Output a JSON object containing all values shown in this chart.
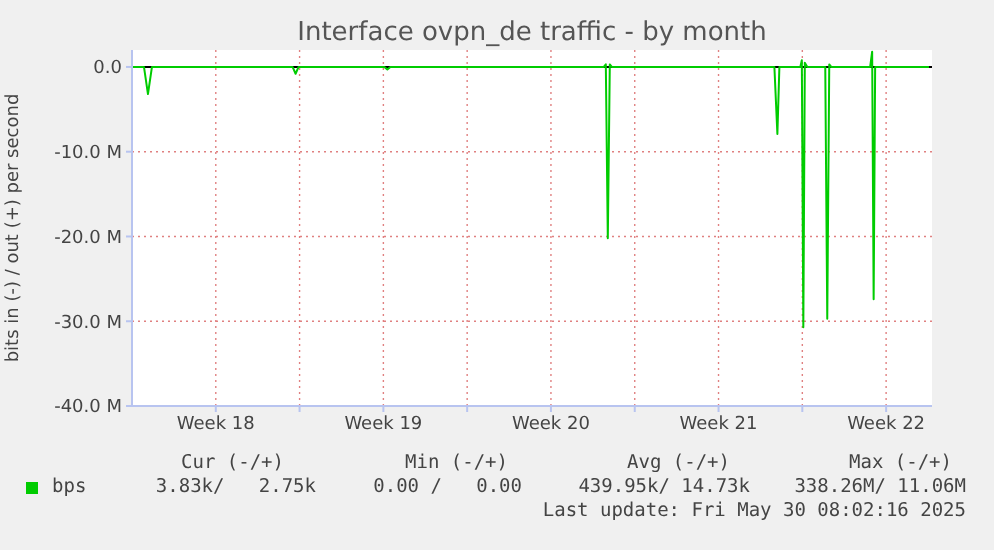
{
  "chart_data": {
    "type": "line",
    "title": "Interface ovpn_de traffic - by month",
    "ylabel": "bits in (-) / out (+) per second",
    "xlim": [
      "2025-04-28",
      "2025-05-31T10:00"
    ],
    "xticks": [
      {
        "value": "2025-05-01T12:00",
        "label": "Week 18"
      },
      {
        "value": "2025-05-05",
        "label": null
      },
      {
        "value": "2025-05-08T12:00",
        "label": "Week 19"
      },
      {
        "value": "2025-05-12",
        "label": null
      },
      {
        "value": "2025-05-15T12:00",
        "label": "Week 20"
      },
      {
        "value": "2025-05-19",
        "label": null
      },
      {
        "value": "2025-05-22T12:00",
        "label": "Week 21"
      },
      {
        "value": "2025-05-26",
        "label": null
      },
      {
        "value": "2025-05-29T12:00",
        "label": "Week 22"
      }
    ],
    "ylim": [
      -40,
      2
    ],
    "yticks": [
      {
        "value": -40,
        "label": "-40.0 M"
      },
      {
        "value": -30,
        "label": "-30.0 M"
      },
      {
        "value": -20,
        "label": "-20.0 M"
      },
      {
        "value": -10,
        "label": "-10.0 M"
      },
      {
        "value": 0,
        "label": "0.0"
      }
    ],
    "grid": true,
    "legend": "bottom",
    "marker": "none",
    "line_style": "solid",
    "ref_lines": [
      {
        "axis": "y",
        "value": 0,
        "color": "#000000"
      }
    ],
    "series": [
      {
        "name": "bps",
        "color": "#00cc00",
        "x": [
          "2025-04-28T00:00",
          "2025-04-28T12:00",
          "2025-04-28T16:00",
          "2025-04-28T20:00",
          "2025-05-04T17:00",
          "2025-05-04T20:00",
          "2025-05-04T23:00",
          "2025-05-08T13:00",
          "2025-05-08T16:00",
          "2025-05-08T19:00",
          "2025-05-17T17:00",
          "2025-05-17T19:00",
          "2025-05-17T21:00",
          "2025-05-17T23:00",
          "2025-05-18T01:00",
          "2025-05-24T20:00",
          "2025-05-24T23:00",
          "2025-05-25T01:00",
          "2025-05-25T22:00",
          "2025-05-25T23:30",
          "2025-05-26T01:00",
          "2025-05-26T02:30",
          "2025-05-26T05:00",
          "2025-05-26T23:00",
          "2025-05-27T01:00",
          "2025-05-27T03:00",
          "2025-05-27T05:00",
          "2025-05-28T20:00",
          "2025-05-28T22:00",
          "2025-05-28T23:30",
          "2025-05-29T01:00",
          "2025-05-31T07:00"
        ],
        "values": [
          0,
          0,
          -3.2,
          0,
          0,
          -0.8,
          0,
          0,
          -0.3,
          0,
          0,
          0.3,
          -20.2,
          0.3,
          0,
          0,
          -7.9,
          0,
          0,
          0.8,
          -30.7,
          0.5,
          0,
          0,
          -29.7,
          0.3,
          0,
          0,
          1.8,
          -27.4,
          0,
          0
        ]
      }
    ],
    "annotations": [
      "Cur (-/+)",
      "Min (-/+)",
      "Avg (-/+)",
      "Max (-/+)",
      "3.83k/   2.75k",
      "0.00 /   0.00",
      "439.95k/ 14.73k",
      "338.26M/ 11.06M",
      "Last update: Fri May 30 08:02:16 2025"
    ]
  }
}
